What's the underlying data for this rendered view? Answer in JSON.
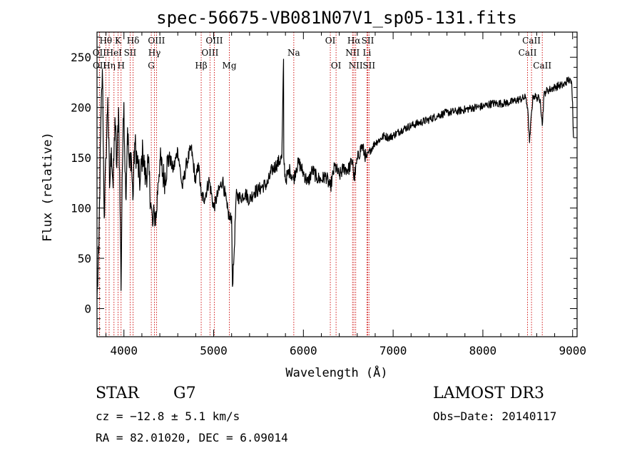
{
  "chart_data": {
    "type": "line",
    "title": "spec-56675-VB081N07V1_sp05-131.fits",
    "xlabel": "Wavelength (Å)",
    "ylabel": "Flux (relative)",
    "xlim": [
      3700,
      9050
    ],
    "ylim": [
      -28,
      275
    ],
    "xticks": [
      4000,
      5000,
      6000,
      7000,
      8000,
      9000
    ],
    "yticks": [
      0,
      50,
      100,
      150,
      200,
      250
    ],
    "grid": false,
    "series": [
      {
        "name": "flux",
        "color": "#000000",
        "x": [
          3700,
          3720,
          3740,
          3760,
          3780,
          3800,
          3820,
          3840,
          3860,
          3880,
          3900,
          3920,
          3940,
          3960,
          3968,
          3980,
          4000,
          4020,
          4040,
          4060,
          4080,
          4100,
          4120,
          4150,
          4180,
          4210,
          4240,
          4270,
          4300,
          4320,
          4340,
          4360,
          4380,
          4400,
          4450,
          4500,
          4550,
          4600,
          4650,
          4700,
          4750,
          4800,
          4830,
          4861,
          4900,
          4950,
          5000,
          5050,
          5100,
          5150,
          5180,
          5200,
          5210,
          5230,
          5250,
          5300,
          5350,
          5400,
          5450,
          5500,
          5550,
          5600,
          5650,
          5700,
          5760,
          5779,
          5781,
          5800,
          5850,
          5890,
          5920,
          5950,
          6000,
          6050,
          6100,
          6150,
          6200,
          6250,
          6300,
          6350,
          6400,
          6450,
          6500,
          6550,
          6563,
          6600,
          6650,
          6700,
          6750,
          6800,
          6850,
          6900,
          6950,
          7000,
          7100,
          7200,
          7300,
          7400,
          7500,
          7600,
          7700,
          7800,
          7900,
          8000,
          8100,
          8200,
          8300,
          8400,
          8480,
          8498,
          8520,
          8542,
          8560,
          8600,
          8640,
          8662,
          8680,
          8700,
          8750,
          8800,
          8850,
          8900,
          8950,
          8990,
          9000,
          9010
        ],
        "values": [
          10,
          55,
          170,
          238,
          90,
          150,
          210,
          120,
          160,
          120,
          190,
          140,
          200,
          85,
          18,
          130,
          205,
          110,
          180,
          140,
          155,
          108,
          165,
          145,
          125,
          158,
          128,
          145,
          105,
          82,
          95,
          90,
          125,
          148,
          128,
          152,
          138,
          158,
          120,
          145,
          160,
          125,
          145,
          112,
          110,
          128,
          100,
          115,
          128,
          100,
          88,
          92,
          22,
          60,
          112,
          110,
          115,
          108,
          116,
          118,
          122,
          124,
          138,
          143,
          150,
          248,
          150,
          128,
          138,
          128,
          140,
          145,
          135,
          125,
          138,
          130,
          128,
          132,
          120,
          142,
          132,
          140,
          138,
          148,
          128,
          148,
          162,
          150,
          158,
          165,
          168,
          172,
          170,
          172,
          178,
          182,
          185,
          188,
          192,
          195,
          196,
          198,
          200,
          201,
          204,
          204,
          205,
          208,
          210,
          200,
          165,
          195,
          212,
          210,
          208,
          182,
          212,
          216,
          218,
          220,
          222,
          222,
          228,
          224,
          205,
          170
        ]
      }
    ],
    "spectral_lines": [
      {
        "label": "Hθ",
        "x": 3798,
        "row": 0
      },
      {
        "label": "Hη",
        "x": 3835,
        "row": 2
      },
      {
        "label": "OII",
        "x": 3727,
        "row": 1
      },
      {
        "label": "OII",
        "x": 3729,
        "row": 2
      },
      {
        "label": "HeI",
        "x": 3889,
        "row": 1
      },
      {
        "label": "K",
        "x": 3934,
        "row": 0
      },
      {
        "label": "SII",
        "x": 4069,
        "row": 1
      },
      {
        "label": "H",
        "x": 3968,
        "row": 2
      },
      {
        "label": "Hδ",
        "x": 4102,
        "row": 0
      },
      {
        "label": "OIII",
        "x": 4363,
        "row": 0
      },
      {
        "label": "Hγ",
        "x": 4340,
        "row": 1
      },
      {
        "label": "G",
        "x": 4305,
        "row": 2
      },
      {
        "label": "Hβ",
        "x": 4861,
        "row": 2
      },
      {
        "label": "OIII",
        "x": 5007,
        "row": 0
      },
      {
        "label": "OIII",
        "x": 4959,
        "row": 1
      },
      {
        "label": "Mg",
        "x": 5175,
        "row": 2
      },
      {
        "label": "Na",
        "x": 5893,
        "row": 1
      },
      {
        "label": "OI",
        "x": 6300,
        "row": 0
      },
      {
        "label": "OI",
        "x": 6364,
        "row": 2
      },
      {
        "label": "Hα",
        "x": 6563,
        "row": 0
      },
      {
        "label": "NII",
        "x": 6548,
        "row": 1
      },
      {
        "label": "NII",
        "x": 6583,
        "row": 2
      },
      {
        "label": "SII",
        "x": 6717,
        "row": 0
      },
      {
        "label": "Li",
        "x": 6708,
        "row": 1
      },
      {
        "label": "SII",
        "x": 6731,
        "row": 2
      },
      {
        "label": "CaII",
        "x": 8542,
        "row": 0
      },
      {
        "label": "CaII",
        "x": 8498,
        "row": 1
      },
      {
        "label": "CaII",
        "x": 8662,
        "row": 2
      }
    ]
  },
  "info": {
    "object_class": "STAR",
    "subclass": "G7",
    "survey": "LAMOST DR3",
    "redshift": "cz = −12.8 ± 5.1 km/s",
    "obs_date": "Obs−Date: 20140117",
    "coords": "RA =  82.01020, DEC =   6.09014"
  },
  "colors": {
    "line_marker": "#cc0000",
    "spectrum": "#000000",
    "background": "#ffffff"
  }
}
